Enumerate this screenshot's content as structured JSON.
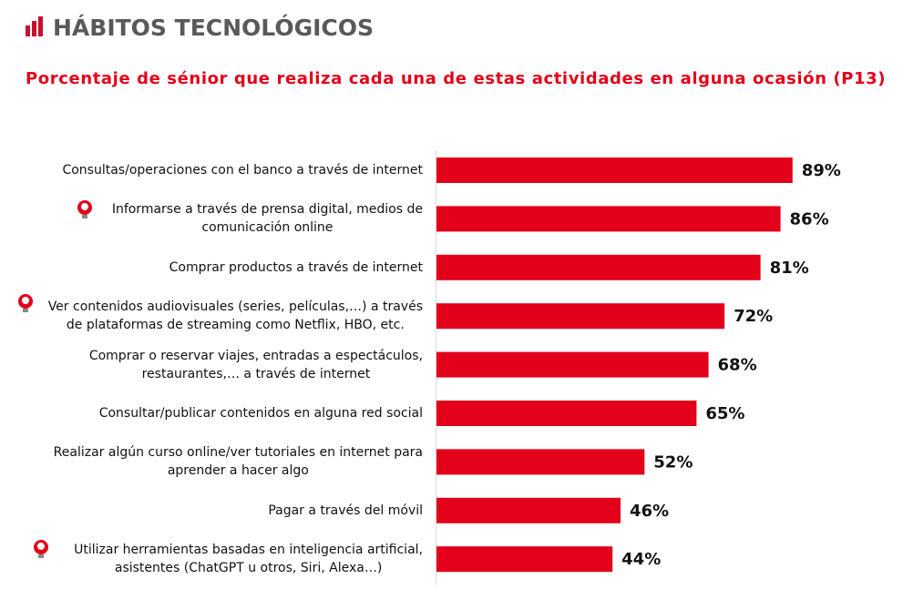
{
  "chart_data": {
    "type": "bar",
    "orientation": "horizontal",
    "title": "HÁBITOS TECNOLÓGICOS",
    "subtitle": "Porcentaje de sénior que realiza cada una de estas actividades en alguna ocasión (P13)",
    "categories": [
      "Consultas/operaciones con el banco a través de internet",
      "Informarse a través de prensa digital, medios de\ncomunicación online",
      "Comprar productos a través de internet",
      "Ver contenidos audiovisuales (series, películas,…) a través\nde plataformas de streaming como Netflix, HBO, etc.",
      "Comprar o reservar viajes, entradas a espectáculos,\nrestaurantes,… a través de internet",
      "Consultar/publicar contenidos en alguna red social",
      "Realizar algún curso online/ver tutoriales en internet para\naprender a hacer algo",
      "Pagar a través del móvil",
      "Utilizar herramientas basadas en inteligencia artificial,\nasistentes (ChatGPT u otros, Siri, Alexa…)"
    ],
    "values": [
      89,
      86,
      81,
      72,
      68,
      65,
      52,
      46,
      44
    ],
    "value_labels": [
      "89%",
      "86%",
      "81%",
      "72%",
      "68%",
      "65%",
      "52%",
      "46%",
      "44%"
    ],
    "color": "#e2001a",
    "xlim": [
      0,
      100
    ]
  }
}
